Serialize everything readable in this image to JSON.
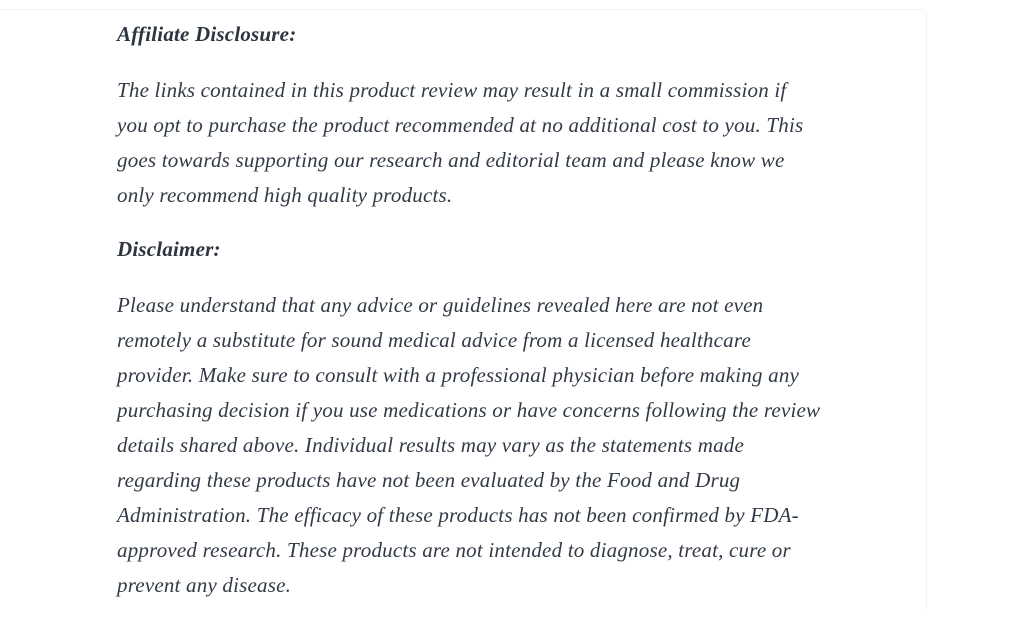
{
  "theme": {
    "background": "#ffffff",
    "card_border": "#f1f1f1",
    "text_color": "#323a46",
    "heading_color": "#2d3540"
  },
  "article": {
    "affiliate": {
      "heading": "Affiliate Disclosure:",
      "lines": [
        "The links contained in this product review may result in a small commission if",
        "you opt to purchase the product recommended at no additional cost to you. This",
        "goes towards supporting our research and editorial team and please know we",
        "only recommend high quality products."
      ]
    },
    "disclaimer": {
      "heading": "Disclaimer:",
      "lines": [
        "Please understand that any advice or guidelines revealed here are not even",
        "remotely a substitute for sound medical advice from a licensed healthcare",
        "provider. Make sure to consult with a professional physician before making any",
        "purchasing decision if you use medications or have concerns following the review",
        "details shared above. Individual results may vary as the statements made",
        "regarding these products have not been evaluated by the Food and Drug",
        "Administration. The efficacy of these products has not been confirmed by FDA-",
        "approved research. These products are not intended to diagnose, treat, cure or",
        "prevent any disease."
      ]
    }
  }
}
